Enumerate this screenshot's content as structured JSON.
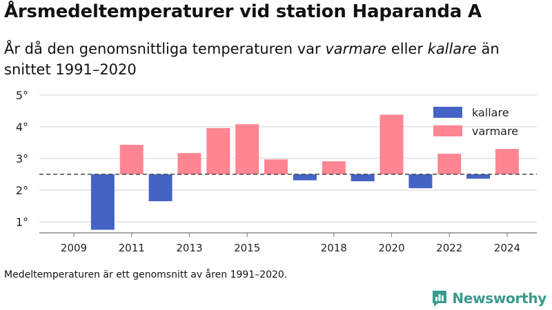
{
  "title": "Årsmedeltemperaturer vid station Haparanda A",
  "subtitle": {
    "part1": "År då den genomsnittliga temperaturen var ",
    "warmer_word": "varmare",
    "part2": " eller ",
    "colder_word": "kallare",
    "part3": " än snittet 1991–2020"
  },
  "footnote": "Medeltemperaturen är ett genomsnitt av åren 1991–2020.",
  "brand": "Newsworthy",
  "colors": {
    "colder": "#4463c4",
    "warmer": "#ff8593",
    "brand": "#3a9a8e"
  },
  "chart_data": {
    "type": "bar",
    "baseline": 2.5,
    "ylim": [
      0.7,
      5.3
    ],
    "yticks": [
      {
        "value": 1,
        "label": "1°"
      },
      {
        "value": 2,
        "label": "2°"
      },
      {
        "value": 3,
        "label": "3°"
      },
      {
        "value": 4,
        "label": "4°"
      },
      {
        "value": 5,
        "label": "5°"
      }
    ],
    "x_tick_labels": [
      "2009",
      "2011",
      "2013",
      "2015",
      "2018",
      "2020",
      "2022",
      "2024"
    ],
    "grid": true,
    "legend_position": "top-right",
    "legend": [
      {
        "key": "colder",
        "label": "kallare"
      },
      {
        "key": "warmer",
        "label": "varmare"
      }
    ],
    "years": [
      2009,
      2010,
      2011,
      2012,
      2013,
      2014,
      2015,
      2016,
      2017,
      2018,
      2019,
      2020,
      2021,
      2022,
      2023,
      2024
    ],
    "values": [
      null,
      0.75,
      3.43,
      1.65,
      3.17,
      3.96,
      4.08,
      2.97,
      2.31,
      2.91,
      2.28,
      4.38,
      2.06,
      3.15,
      2.36,
      3.3
    ]
  }
}
